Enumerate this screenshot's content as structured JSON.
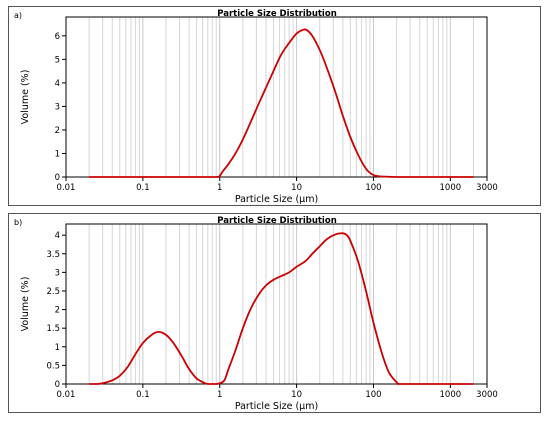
{
  "chart_data": [
    {
      "panel_label": "a)",
      "type": "line",
      "title": "Particle Size Distribution",
      "xlabel": "Particle Size (µm)",
      "ylabel": "Volume (%)",
      "x_scale": "log",
      "xlim": [
        0.01,
        3000
      ],
      "ylim": [
        0,
        6.8
      ],
      "xticks": [
        "0.01",
        "0.1",
        "1",
        "10",
        "100",
        "1000",
        "3000"
      ],
      "yticks": [
        "0",
        "1",
        "2",
        "3",
        "4",
        "5",
        "6"
      ],
      "grid": "vertical",
      "line_color": "#cc0000",
      "series": [
        {
          "x": [
            0.02,
            0.1,
            0.5,
            0.9,
            1.0,
            1.1,
            1.3,
            1.6,
            2.0,
            2.5,
            3.2,
            4.0,
            5.0,
            6.3,
            8.0,
            10,
            12,
            13.5,
            16,
            20,
            25,
            32,
            40,
            50,
            63,
            80,
            100,
            130,
            200,
            500,
            1000,
            2000
          ],
          "y": [
            0,
            0,
            0,
            0,
            0.05,
            0.25,
            0.55,
            1.0,
            1.6,
            2.3,
            3.1,
            3.8,
            4.5,
            5.2,
            5.7,
            6.1,
            6.25,
            6.25,
            6.0,
            5.4,
            4.6,
            3.6,
            2.6,
            1.7,
            0.95,
            0.35,
            0.08,
            0.02,
            0,
            0,
            0,
            0
          ]
        }
      ]
    },
    {
      "panel_label": "b)",
      "type": "line",
      "title": "Particle Size Distribution",
      "xlabel": "Particle Size (µm)",
      "ylabel": "Volume (%)",
      "x_scale": "log",
      "xlim": [
        0.01,
        3000
      ],
      "ylim": [
        0,
        4.3
      ],
      "xticks": [
        "0.01",
        "0.1",
        "1",
        "10",
        "100",
        "1000",
        "3000"
      ],
      "yticks": [
        "0",
        "0.5",
        "1",
        "1.5",
        "2",
        "2.5",
        "3",
        "3.5",
        "4"
      ],
      "grid": "vertical",
      "line_color": "#cc0000",
      "series": [
        {
          "x": [
            0.02,
            0.025,
            0.03,
            0.04,
            0.05,
            0.063,
            0.08,
            0.1,
            0.13,
            0.16,
            0.2,
            0.25,
            0.32,
            0.4,
            0.5,
            0.63,
            0.7,
            0.8,
            0.9,
            1.0,
            1.15,
            1.3,
            1.6,
            2.0,
            2.5,
            3.2,
            4.0,
            5.0,
            6.3,
            8.0,
            10,
            13,
            16,
            20,
            25,
            32,
            40,
            45,
            50,
            63,
            80,
            100,
            130,
            160,
            200,
            220,
            500,
            1000,
            2000
          ],
          "y": [
            0,
            0,
            0.02,
            0.1,
            0.22,
            0.45,
            0.8,
            1.1,
            1.32,
            1.4,
            1.32,
            1.1,
            0.75,
            0.4,
            0.15,
            0.03,
            0,
            0,
            0,
            0.02,
            0.1,
            0.4,
            0.9,
            1.5,
            2.0,
            2.4,
            2.65,
            2.8,
            2.9,
            3.0,
            3.15,
            3.3,
            3.5,
            3.7,
            3.9,
            4.02,
            4.05,
            4.0,
            3.85,
            3.3,
            2.5,
            1.65,
            0.8,
            0.3,
            0.05,
            0,
            0,
            0,
            0
          ]
        }
      ]
    }
  ]
}
